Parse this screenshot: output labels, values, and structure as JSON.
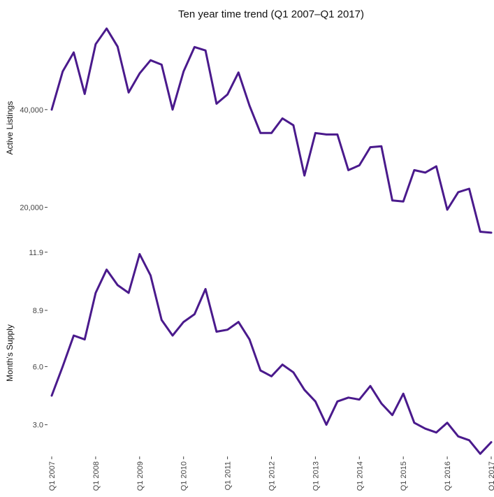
{
  "chart_data": {
    "type": "line",
    "title": "Ten year time trend (Q1 2007–Q1 2017)",
    "xlabel": "",
    "x_tick_labels": [
      "Q1 2007",
      "Q1 2008",
      "Q1 2009",
      "Q1 2010",
      "Q1 2011",
      "Q1 2012",
      "Q1 2013",
      "Q1 2014",
      "Q1 2015",
      "Q1 2016",
      "Q1 2017"
    ],
    "x": [
      "Q1 2007",
      "Q2 2007",
      "Q3 2007",
      "Q4 2007",
      "Q1 2008",
      "Q2 2008",
      "Q3 2008",
      "Q4 2008",
      "Q1 2009",
      "Q2 2009",
      "Q3 2009",
      "Q4 2009",
      "Q1 2010",
      "Q2 2010",
      "Q3 2010",
      "Q4 2010",
      "Q1 2011",
      "Q2 2011",
      "Q3 2011",
      "Q4 2011",
      "Q1 2012",
      "Q2 2012",
      "Q3 2012",
      "Q4 2012",
      "Q1 2013",
      "Q2 2013",
      "Q3 2013",
      "Q4 2013",
      "Q1 2014",
      "Q2 2014",
      "Q3 2014",
      "Q4 2014",
      "Q1 2015",
      "Q2 2015",
      "Q3 2015",
      "Q4 2015",
      "Q1 2016",
      "Q2 2016",
      "Q3 2016",
      "Q4 2016",
      "Q1 2017"
    ],
    "color": "#4a1a8c",
    "grid": false,
    "panels": [
      {
        "ylabel": "Active Listings",
        "y_ticks": [
          20000,
          40000
        ],
        "y_tick_labels": [
          "20,000",
          "40,000"
        ],
        "ylim": [
          15500,
          57000
        ],
        "values": [
          40000,
          47800,
          51700,
          43200,
          53400,
          56600,
          52900,
          43500,
          47400,
          50100,
          49200,
          40000,
          47800,
          52800,
          52100,
          41200,
          43100,
          47600,
          40800,
          35200,
          35200,
          38200,
          36800,
          26500,
          35200,
          34900,
          34900,
          27600,
          28600,
          32300,
          32500,
          21400,
          21200,
          27600,
          27100,
          28400,
          19500,
          23100,
          23800,
          15000,
          14800
        ]
      },
      {
        "ylabel": "Month's Supply",
        "y_ticks": [
          3.0,
          6.0,
          8.9,
          11.9
        ],
        "y_tick_labels": [
          "3.0",
          "6.0",
          "8.9",
          "11.9"
        ],
        "ylim": [
          1.4,
          12.0
        ],
        "values": [
          4.5,
          6.0,
          7.6,
          7.4,
          9.8,
          11.0,
          10.2,
          9.8,
          11.8,
          10.7,
          8.4,
          7.6,
          8.3,
          8.7,
          10.0,
          7.8,
          7.9,
          8.3,
          7.4,
          5.8,
          5.5,
          6.1,
          5.7,
          4.8,
          4.2,
          3.0,
          4.2,
          4.4,
          4.3,
          5.0,
          4.1,
          3.5,
          4.6,
          3.1,
          2.8,
          2.6,
          3.1,
          2.4,
          2.2,
          1.5,
          2.1
        ]
      }
    ]
  }
}
